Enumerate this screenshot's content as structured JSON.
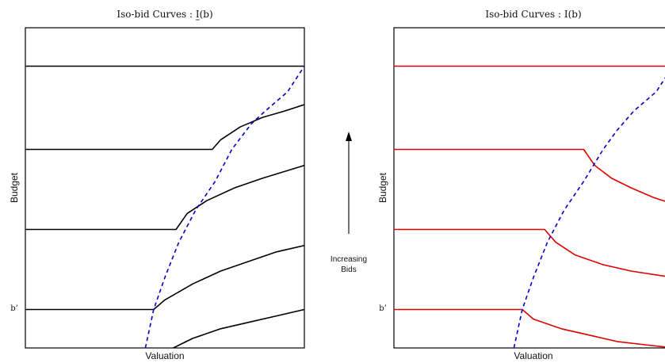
{
  "chart_data": [
    {
      "type": "line",
      "title": "Iso-bid Curves : I(b)",
      "title_underline": "I",
      "xlabel": "Valuation",
      "ylabel": "Budget",
      "y_tick_label": "b’",
      "xlim": [
        0,
        1
      ],
      "ylim": [
        0,
        1
      ],
      "color": "#000000",
      "boundary_color": "#0000cc",
      "boundary_curve": {
        "name": "",
        "style": "dashed",
        "x": [
          0.43,
          0.46,
          0.5,
          0.55,
          0.61,
          0.68,
          0.74,
          0.81,
          0.86,
          0.9,
          0.94,
          0.97,
          1.0
        ],
        "y": [
          0.0,
          0.12,
          0.22,
          0.33,
          0.43,
          0.52,
          0.62,
          0.7,
          0.74,
          0.77,
          0.8,
          0.84,
          0.88
        ]
      },
      "iso_bid_curves": [
        {
          "x": [
            0.53,
            0.6,
            0.7,
            0.8,
            0.9,
            1.0
          ],
          "y": [
            0.0,
            0.03,
            0.06,
            0.08,
            0.1,
            0.12
          ]
        },
        {
          "x": [
            0.0,
            0.46,
            0.5,
            0.6,
            0.7,
            0.8,
            0.9,
            1.0
          ],
          "y": [
            0.12,
            0.12,
            0.15,
            0.2,
            0.24,
            0.27,
            0.3,
            0.32
          ]
        },
        {
          "x": [
            0.0,
            0.54,
            0.58,
            0.65,
            0.75,
            0.85,
            1.0
          ],
          "y": [
            0.37,
            0.37,
            0.42,
            0.46,
            0.5,
            0.53,
            0.57
          ]
        },
        {
          "x": [
            0.0,
            0.67,
            0.7,
            0.77,
            0.85,
            0.93,
            1.0
          ],
          "y": [
            0.62,
            0.62,
            0.65,
            0.69,
            0.72,
            0.74,
            0.76
          ]
        },
        {
          "x": [
            0.0,
            1.0
          ],
          "y": [
            0.88,
            0.88
          ]
        }
      ]
    },
    {
      "type": "line",
      "title": "Iso-bid Curves : I(b)",
      "xlabel": "Valuation",
      "ylabel": "Budget",
      "y_tick_label": "b’",
      "xlim": [
        0,
        1
      ],
      "ylim": [
        0,
        1
      ],
      "color": "#dd0000",
      "boundary_color": "#0000cc",
      "boundary_curve": {
        "name": "",
        "style": "dashed",
        "x": [
          0.43,
          0.46,
          0.5,
          0.55,
          0.61,
          0.68,
          0.75,
          0.8,
          0.86,
          0.9,
          0.94,
          0.97,
          1.0
        ],
        "y": [
          0.0,
          0.12,
          0.22,
          0.33,
          0.43,
          0.52,
          0.62,
          0.68,
          0.74,
          0.77,
          0.8,
          0.84,
          0.88
        ]
      },
      "iso_bid_curves": [
        {
          "x": [
            0.0,
            0.46,
            0.5,
            0.6,
            0.7,
            0.8,
            0.9,
            1.0
          ],
          "y": [
            0.12,
            0.12,
            0.09,
            0.06,
            0.04,
            0.02,
            0.01,
            0.0
          ]
        },
        {
          "x": [
            0.0,
            0.54,
            0.58,
            0.65,
            0.75,
            0.85,
            1.0
          ],
          "y": [
            0.37,
            0.37,
            0.33,
            0.29,
            0.26,
            0.24,
            0.22
          ]
        },
        {
          "x": [
            0.0,
            0.68,
            0.72,
            0.78,
            0.85,
            0.93,
            1.0
          ],
          "y": [
            0.62,
            0.62,
            0.57,
            0.53,
            0.5,
            0.47,
            0.45
          ]
        },
        {
          "x": [
            0.0,
            1.0
          ],
          "y": [
            0.88,
            0.88
          ]
        }
      ]
    }
  ],
  "annotation": {
    "line1": "Increasing",
    "line2": "Bids"
  }
}
